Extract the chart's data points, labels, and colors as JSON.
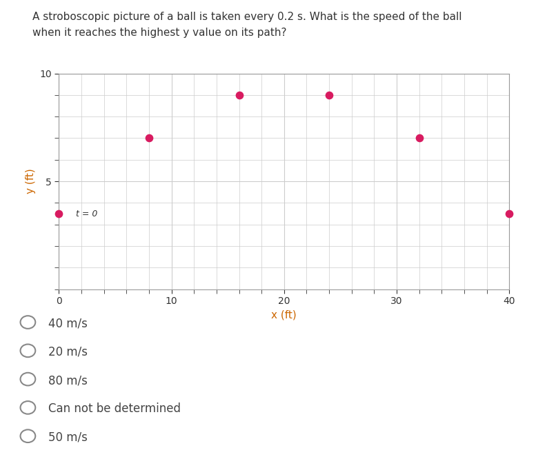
{
  "title_line1": "A stroboscopic picture of a ball is taken every 0.2 s. What is the speed of the ball",
  "title_line2": "when it reaches the highest y value on its path?",
  "ball_x": [
    0,
    8,
    16,
    24,
    32,
    40
  ],
  "ball_y": [
    3.5,
    7.0,
    9.0,
    9.0,
    7.0,
    3.5
  ],
  "ball_color": "#d81b60",
  "t0_label": "t = 0",
  "xlabel": "x (ft)",
  "ylabel": "y (ft)",
  "xlim": [
    0,
    40
  ],
  "ylim": [
    0,
    10
  ],
  "xticks": [
    0,
    10,
    20,
    30,
    40
  ],
  "yticks": [
    5,
    10
  ],
  "choices": [
    "40 m/s",
    "20 m/s",
    "80 m/s",
    "Can not be determined",
    "50 m/s"
  ],
  "background_color": "#ffffff",
  "grid_color": "#cccccc",
  "text_color": "#333333",
  "title_color": "#333333",
  "choice_color": "#444444",
  "tick_color": "#333333",
  "axis_label_color": "#cc6600",
  "spine_color": "#999999"
}
